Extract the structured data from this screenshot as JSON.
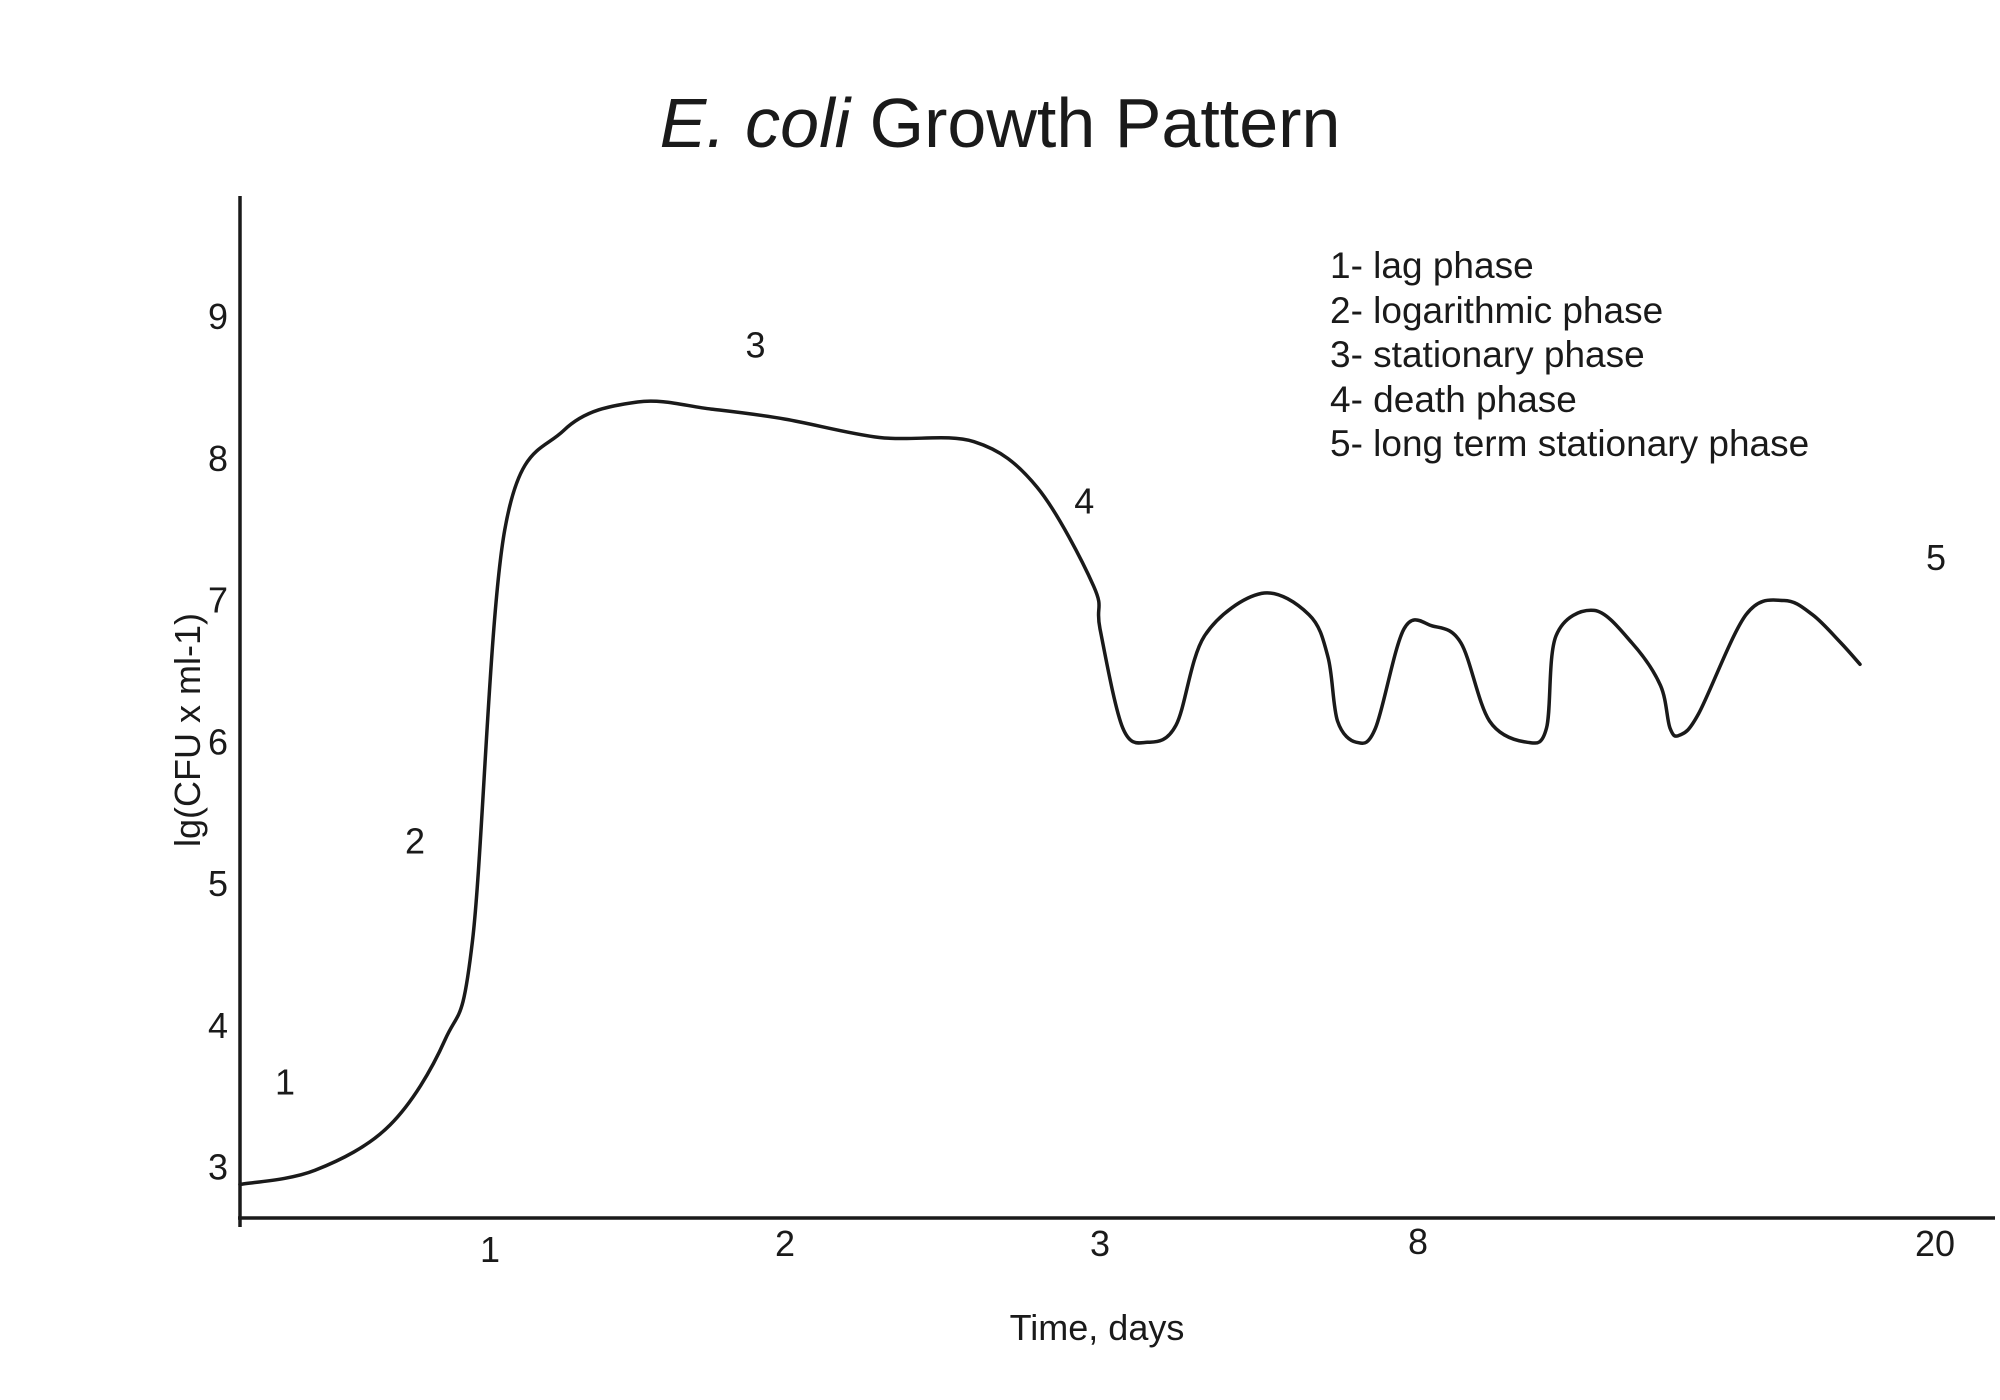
{
  "chart_data": {
    "type": "line",
    "title_italic": "E. coli",
    "title_rest": "Growth Pattern",
    "xlabel": "Time, days",
    "ylabel": "lg(CFU x ml-1)",
    "grid": false,
    "legend_position": "top-right",
    "x_ticks": [
      "1",
      "2",
      "3",
      "8",
      "20"
    ],
    "y_ticks": [
      3,
      4,
      5,
      6,
      7,
      8,
      9
    ],
    "ylim": [
      2.7,
      10
    ],
    "phase_labels": [
      {
        "text": "1",
        "x": 0.18,
        "y": 3.6
      },
      {
        "text": "2",
        "x": 0.7,
        "y": 5.3
      },
      {
        "text": "3",
        "x": 1.9,
        "y": 8.8
      },
      {
        "text": "4",
        "x": 2.95,
        "y": 7.7
      },
      {
        "text": "5",
        "x": 7.4,
        "y": 7.3
      }
    ],
    "legend": [
      "1- lag phase",
      "2- logarithmic phase",
      "3- stationary phase",
      "4- death phase",
      "5- long term stationary phase"
    ],
    "curve": [
      [
        0.0,
        2.88
      ],
      [
        0.3,
        2.98
      ],
      [
        0.6,
        3.3
      ],
      [
        0.82,
        3.9
      ],
      [
        0.93,
        4.6
      ],
      [
        1.05,
        7.5
      ],
      [
        1.25,
        8.2
      ],
      [
        1.5,
        8.4
      ],
      [
        1.75,
        8.35
      ],
      [
        2.0,
        8.28
      ],
      [
        2.3,
        8.15
      ],
      [
        2.6,
        8.12
      ],
      [
        2.8,
        7.8
      ],
      [
        2.98,
        7.1
      ],
      [
        3.0,
        6.8
      ],
      [
        3.12,
        6.1
      ],
      [
        3.25,
        6.0
      ],
      [
        3.4,
        6.12
      ],
      [
        3.55,
        6.75
      ],
      [
        3.85,
        7.05
      ],
      [
        4.1,
        6.9
      ],
      [
        4.2,
        6.6
      ],
      [
        4.25,
        6.15
      ],
      [
        4.35,
        6.0
      ],
      [
        4.45,
        6.1
      ],
      [
        4.6,
        6.8
      ],
      [
        4.75,
        6.82
      ],
      [
        4.9,
        6.7
      ],
      [
        5.05,
        6.15
      ],
      [
        5.25,
        6.0
      ],
      [
        5.35,
        6.1
      ],
      [
        5.4,
        6.75
      ],
      [
        5.6,
        6.93
      ],
      [
        5.8,
        6.7
      ],
      [
        5.95,
        6.4
      ],
      [
        6.0,
        6.1
      ],
      [
        6.05,
        6.05
      ],
      [
        6.15,
        6.2
      ],
      [
        6.4,
        6.9
      ],
      [
        6.6,
        7.0
      ],
      [
        6.75,
        6.9
      ],
      [
        6.9,
        6.7
      ],
      [
        7.0,
        6.55
      ]
    ]
  }
}
